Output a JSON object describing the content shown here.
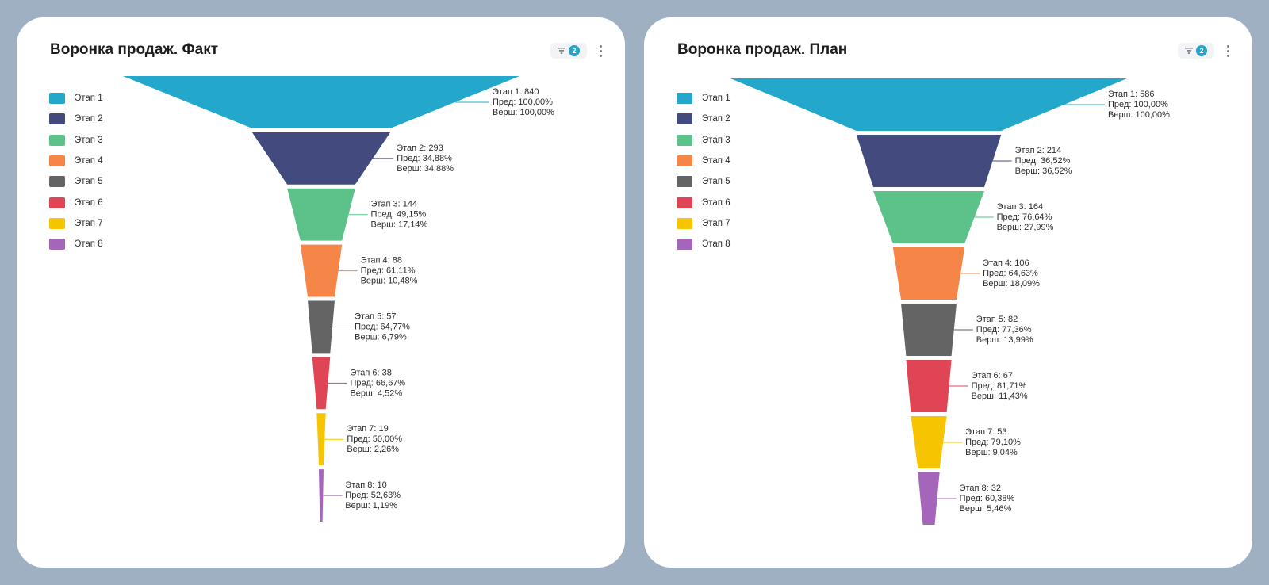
{
  "legend_items": [
    "Этап 1",
    "Этап 2",
    "Этап 3",
    "Этап 4",
    "Этап 5",
    "Этап 6",
    "Этап 7",
    "Этап 8"
  ],
  "colors": [
    "#23a8cc",
    "#434b7e",
    "#5cc28a",
    "#f68548",
    "#646464",
    "#e04555",
    "#f6c400",
    "#a565bb"
  ],
  "cards": [
    {
      "title": "Воронка продаж. Факт",
      "filter_count": "2"
    },
    {
      "title": "Воронка продаж. План",
      "filter_count": "2"
    }
  ],
  "chart_data": [
    {
      "type": "funnel",
      "title": "Воронка продаж. Факт",
      "categories": [
        "Этап 1",
        "Этап 2",
        "Этап 3",
        "Этап 4",
        "Этап 5",
        "Этап 6",
        "Этап 7",
        "Этап 8"
      ],
      "values": [
        840,
        293,
        144,
        88,
        57,
        38,
        19,
        10
      ],
      "labels": [
        [
          "Этап 1: 840",
          "Пред: 100,00%",
          "Верш: 100,00%"
        ],
        [
          "Этап 2: 293",
          "Пред: 34,88%",
          "Верш: 34,88%"
        ],
        [
          "Этап 3: 144",
          "Пред: 49,15%",
          "Верш: 17,14%"
        ],
        [
          "Этап 4: 88",
          "Пред: 61,11%",
          "Верш: 10,48%"
        ],
        [
          "Этап 5: 57",
          "Пред: 64,77%",
          "Верш: 6,79%"
        ],
        [
          "Этап 6: 38",
          "Пред: 66,67%",
          "Верш: 4,52%"
        ],
        [
          "Этап 7: 19",
          "Пред: 50,00%",
          "Верш: 2,26%"
        ],
        [
          "Этап 8: 10",
          "Пред: 52,63%",
          "Верш: 1,19%"
        ]
      ]
    },
    {
      "type": "funnel",
      "title": "Воронка продаж. План",
      "categories": [
        "Этап 1",
        "Этап 2",
        "Этап 3",
        "Этап 4",
        "Этап 5",
        "Этап 6",
        "Этап 7",
        "Этап 8"
      ],
      "values": [
        586,
        214,
        164,
        106,
        82,
        67,
        53,
        32
      ],
      "labels": [
        [
          "Этап 1: 586",
          "Пред: 100,00%",
          "Верш: 100,00%"
        ],
        [
          "Этап 2: 214",
          "Пред: 36,52%",
          "Верш: 36,52%"
        ],
        [
          "Этап 3: 164",
          "Пред: 76,64%",
          "Верш: 27,99%"
        ],
        [
          "Этап 4: 106",
          "Пред: 64,63%",
          "Верш: 18,09%"
        ],
        [
          "Этап 5: 82",
          "Пред: 77,36%",
          "Верш: 13,99%"
        ],
        [
          "Этап 6: 67",
          "Пред: 81,71%",
          "Верш: 11,43%"
        ],
        [
          "Этап 7: 53",
          "Пред: 79,10%",
          "Верш: 9,04%"
        ],
        [
          "Этап 8: 32",
          "Пред: 60,38%",
          "Верш: 5,46%"
        ]
      ]
    }
  ]
}
